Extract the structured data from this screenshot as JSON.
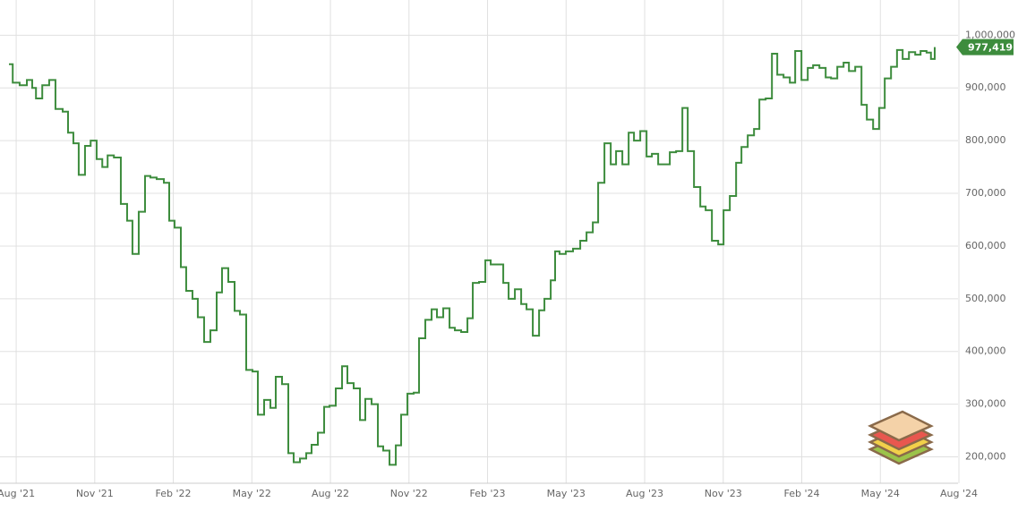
{
  "chart_data": {
    "type": "step",
    "x": [
      2021.56,
      2021.572,
      2021.594,
      2021.617,
      2021.634,
      2021.646,
      2021.666,
      2021.688,
      2021.708,
      2021.731,
      2021.748,
      2021.765,
      2021.782,
      2021.802,
      2021.82,
      2021.839,
      2021.857,
      2021.874,
      2021.894,
      2021.916,
      2021.936,
      2021.953,
      2021.973,
      2021.993,
      2022.01,
      2022.03,
      2022.053,
      2022.07,
      2022.087,
      2022.107,
      2022.124,
      2022.144,
      2022.161,
      2022.181,
      2022.201,
      2022.221,
      2022.238,
      2022.258,
      2022.278,
      2022.295,
      2022.315,
      2022.335,
      2022.352,
      2022.372,
      2022.392,
      2022.409,
      2022.429,
      2022.449,
      2022.466,
      2022.486,
      2022.506,
      2022.523,
      2022.543,
      2022.563,
      2022.58,
      2022.6,
      2022.62,
      2022.637,
      2022.657,
      2022.677,
      2022.694,
      2022.714,
      2022.734,
      2022.751,
      2022.771,
      2022.791,
      2022.808,
      2022.828,
      2022.848,
      2022.865,
      2022.885,
      2022.905,
      2022.922,
      2022.942,
      2022.962,
      2022.979,
      2022.999,
      2023.019,
      2023.036,
      2023.056,
      2023.076,
      2023.093,
      2023.113,
      2023.133,
      2023.15,
      2023.17,
      2023.19,
      2023.207,
      2023.227,
      2023.247,
      2023.264,
      2023.284,
      2023.298,
      2023.312,
      2023.332,
      2023.355,
      2023.378,
      2023.398,
      2023.418,
      2023.435,
      2023.455,
      2023.475,
      2023.492,
      2023.512,
      2023.532,
      2023.549,
      2023.569,
      2023.589,
      2023.606,
      2023.626,
      2023.646,
      2023.663,
      2023.683,
      2023.703,
      2023.72,
      2023.74,
      2023.76,
      2023.777,
      2023.797,
      2023.817,
      2023.834,
      2023.854,
      2023.874,
      2023.891,
      2023.911,
      2023.931,
      2023.948,
      2023.968,
      2023.988,
      2024.005,
      2024.025,
      2024.045,
      2024.062,
      2024.082,
      2024.102,
      2024.119,
      2024.139,
      2024.159,
      2024.176,
      2024.196,
      2024.216,
      2024.233,
      2024.253,
      2024.273,
      2024.29,
      2024.31,
      2024.329,
      2024.347,
      2024.367,
      2024.386,
      2024.404,
      2024.424,
      2024.444,
      2024.461,
      2024.48,
      2024.494,
      2024.506
    ],
    "series": [
      {
        "color": "#3d8c3d",
        "values": [
          945000,
          910000,
          905000,
          915000,
          900000,
          880000,
          905000,
          915000,
          860000,
          855000,
          815000,
          795000,
          735000,
          790000,
          800000,
          765000,
          750000,
          772000,
          768000,
          680000,
          648000,
          585000,
          665000,
          733000,
          730000,
          727000,
          720000,
          648000,
          635000,
          560000,
          515000,
          500000,
          465000,
          418000,
          440000,
          512000,
          558000,
          532000,
          477000,
          470000,
          365000,
          362000,
          280000,
          308000,
          293000,
          352000,
          338000,
          207000,
          190000,
          197000,
          207000,
          223000,
          246000,
          295000,
          297000,
          330000,
          372000,
          340000,
          330000,
          270000,
          310000,
          300000,
          220000,
          212000,
          185000,
          222000,
          280000,
          320000,
          322000,
          425000,
          460000,
          480000,
          465000,
          482000,
          445000,
          440000,
          437000,
          463000,
          530000,
          532000,
          573000,
          565000,
          565000,
          530000,
          500000,
          518000,
          490000,
          480000,
          430000,
          478000,
          500000,
          535000,
          590000,
          585000,
          590000,
          595000,
          610000,
          626000,
          645000,
          720000,
          795000,
          755000,
          780000,
          755000,
          815000,
          800000,
          818000,
          770000,
          775000,
          755000,
          755000,
          778000,
          780000,
          862000,
          780000,
          712000,
          675000,
          668000,
          610000,
          603000,
          668000,
          695000,
          758000,
          788000,
          810000,
          822000,
          878000,
          880000,
          965000,
          925000,
          920000,
          910000,
          970000,
          915000,
          938000,
          943000,
          938000,
          920000,
          918000,
          940000,
          948000,
          932000,
          940000,
          868000,
          840000,
          822000,
          862000,
          918000,
          940000,
          972000,
          955000,
          968000,
          963000,
          970000,
          967000,
          955000,
          977419
        ]
      }
    ],
    "current": {
      "value": 977419,
      "label": "977,419"
    },
    "xlim": [
      2021.56,
      2024.583
    ],
    "xticks": [
      {
        "value": 2021.583,
        "label": "Aug '21"
      },
      {
        "value": 2021.833,
        "label": "Nov '21"
      },
      {
        "value": 2022.083,
        "label": "Feb '22"
      },
      {
        "value": 2022.333,
        "label": "May '22"
      },
      {
        "value": 2022.583,
        "label": "Aug '22"
      },
      {
        "value": 2022.833,
        "label": "Nov '22"
      },
      {
        "value": 2023.083,
        "label": "Feb '23"
      },
      {
        "value": 2023.333,
        "label": "May '23"
      },
      {
        "value": 2023.583,
        "label": "Aug '23"
      },
      {
        "value": 2023.833,
        "label": "Nov '23"
      },
      {
        "value": 2024.083,
        "label": "Feb '24"
      },
      {
        "value": 2024.333,
        "label": "May '24"
      },
      {
        "value": 2024.583,
        "label": "Aug '24"
      }
    ],
    "ylim": [
      150000,
      1060000
    ],
    "yticks": [
      {
        "value": 200000,
        "label": "200,000"
      },
      {
        "value": 300000,
        "label": "300,000"
      },
      {
        "value": 400000,
        "label": "400,000"
      },
      {
        "value": 500000,
        "label": "500,000"
      },
      {
        "value": 600000,
        "label": "600,000"
      },
      {
        "value": 700000,
        "label": "700,000"
      },
      {
        "value": 800000,
        "label": "800,000"
      },
      {
        "value": 900000,
        "label": "900,000"
      },
      {
        "value": 1000000,
        "label": "1,000,000"
      }
    ],
    "grid": true
  }
}
